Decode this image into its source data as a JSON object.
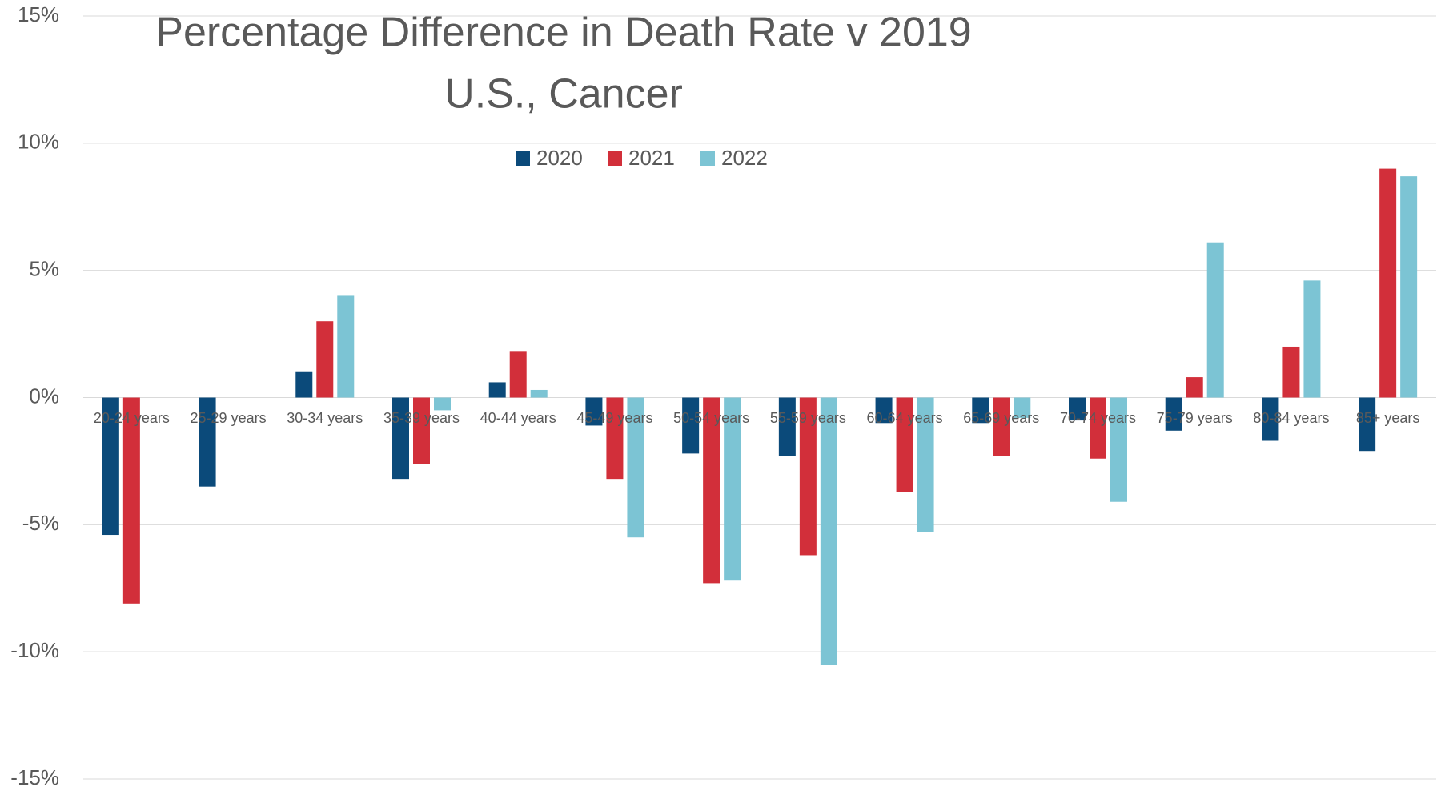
{
  "chart_data": {
    "type": "bar",
    "title": "Percentage Difference in Death Rate v 2019",
    "subtitle": "U.S., Cancer",
    "categories": [
      "20-24 years",
      "25-29 years",
      "30-34 years",
      "35-39 years",
      "40-44 years",
      "45-49 years",
      "50-54 years",
      "55-59 years",
      "60-64 years",
      "65-69 years",
      "70-74 years",
      "75-79 years",
      "80-84 years",
      "85+ years"
    ],
    "series": [
      {
        "name": "2020",
        "color": "#0b4a7a",
        "values": [
          -5.4,
          -3.5,
          1.0,
          -3.2,
          0.6,
          -1.1,
          -2.2,
          -2.3,
          -1.0,
          -1.0,
          -0.9,
          -1.3,
          -1.7,
          -2.1
        ]
      },
      {
        "name": "2021",
        "color": "#d22f3a",
        "values": [
          -8.1,
          null,
          3.0,
          -2.6,
          1.8,
          -3.2,
          -7.3,
          -6.2,
          -3.7,
          -2.3,
          -2.4,
          0.8,
          2.0,
          9.0
        ]
      },
      {
        "name": "2022",
        "color": "#7cc4d4",
        "values": [
          null,
          null,
          4.0,
          -0.5,
          0.3,
          -5.5,
          -7.2,
          -10.5,
          -5.3,
          -0.8,
          -4.1,
          6.1,
          4.6,
          8.7
        ]
      }
    ],
    "ylim": [
      -15,
      15
    ],
    "yticks": [
      {
        "value": -15,
        "label": "-15%"
      },
      {
        "value": -10,
        "label": "-10%"
      },
      {
        "value": -5,
        "label": "-5%"
      },
      {
        "value": 0,
        "label": "0%"
      },
      {
        "value": 5,
        "label": "5%"
      },
      {
        "value": 10,
        "label": "10%"
      },
      {
        "value": 15,
        "label": "15%"
      }
    ],
    "grid": true,
    "legend": "top"
  }
}
